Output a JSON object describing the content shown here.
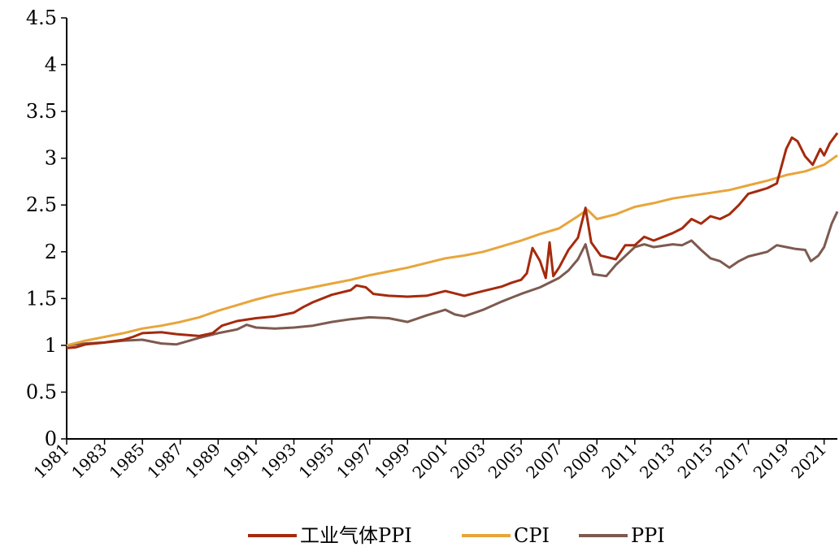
{
  "chart_data": {
    "type": "line",
    "xlim": [
      1981,
      2021.7
    ],
    "ylim": [
      0,
      4.5
    ],
    "y_ticks": [
      {
        "value": 0,
        "label": "0"
      },
      {
        "value": 0.5,
        "label": "0.5"
      },
      {
        "value": 1,
        "label": "1"
      },
      {
        "value": 1.5,
        "label": "1.5"
      },
      {
        "value": 2,
        "label": "2"
      },
      {
        "value": 2.5,
        "label": "2.5"
      },
      {
        "value": 3,
        "label": "3"
      },
      {
        "value": 3.5,
        "label": "3.5"
      },
      {
        "value": 4,
        "label": "4"
      },
      {
        "value": 4.5,
        "label": "4.5"
      }
    ],
    "x_ticks": [
      {
        "value": 1981,
        "label": "1981"
      },
      {
        "value": 1983,
        "label": "1983"
      },
      {
        "value": 1985,
        "label": "1985"
      },
      {
        "value": 1987,
        "label": "1987"
      },
      {
        "value": 1989,
        "label": "1989"
      },
      {
        "value": 1991,
        "label": "1991"
      },
      {
        "value": 1993,
        "label": "1993"
      },
      {
        "value": 1995,
        "label": "1995"
      },
      {
        "value": 1997,
        "label": "1997"
      },
      {
        "value": 1999,
        "label": "1999"
      },
      {
        "value": 2001,
        "label": "2001"
      },
      {
        "value": 2003,
        "label": "2003"
      },
      {
        "value": 2005,
        "label": "2005"
      },
      {
        "value": 2007,
        "label": "2007"
      },
      {
        "value": 2009,
        "label": "2009"
      },
      {
        "value": 2011,
        "label": "2011"
      },
      {
        "value": 2013,
        "label": "2013"
      },
      {
        "value": 2015,
        "label": "2015"
      },
      {
        "value": 2017,
        "label": "2017"
      },
      {
        "value": 2019,
        "label": "2019"
      },
      {
        "value": 2021,
        "label": "2021"
      }
    ],
    "grid": false,
    "legend_position": "bottom-center",
    "series": [
      {
        "name": "工业气体PPI",
        "color": "#A52A0D",
        "points": [
          [
            1981,
            0.97
          ],
          [
            1981.5,
            0.98
          ],
          [
            1982,
            1.01
          ],
          [
            1983,
            1.03
          ],
          [
            1984,
            1.06
          ],
          [
            1984.5,
            1.09
          ],
          [
            1985,
            1.13
          ],
          [
            1986,
            1.14
          ],
          [
            1986.8,
            1.12
          ],
          [
            1988,
            1.1
          ],
          [
            1988.7,
            1.13
          ],
          [
            1989.2,
            1.21
          ],
          [
            1990,
            1.26
          ],
          [
            1991,
            1.29
          ],
          [
            1992,
            1.31
          ],
          [
            1993,
            1.35
          ],
          [
            1993.5,
            1.41
          ],
          [
            1994,
            1.46
          ],
          [
            1995,
            1.54
          ],
          [
            1996,
            1.59
          ],
          [
            1996.3,
            1.64
          ],
          [
            1996.8,
            1.62
          ],
          [
            1997.2,
            1.55
          ],
          [
            1998,
            1.53
          ],
          [
            1999,
            1.52
          ],
          [
            2000,
            1.53
          ],
          [
            2001,
            1.58
          ],
          [
            2002,
            1.53
          ],
          [
            2003,
            1.58
          ],
          [
            2004,
            1.63
          ],
          [
            2004.5,
            1.67
          ],
          [
            2005,
            1.7
          ],
          [
            2005.3,
            1.77
          ],
          [
            2005.6,
            2.04
          ],
          [
            2006,
            1.9
          ],
          [
            2006.3,
            1.72
          ],
          [
            2006.5,
            2.1
          ],
          [
            2006.7,
            1.74
          ],
          [
            2007,
            1.83
          ],
          [
            2007.5,
            2.02
          ],
          [
            2008,
            2.15
          ],
          [
            2008.4,
            2.47
          ],
          [
            2008.7,
            2.1
          ],
          [
            2009.2,
            1.96
          ],
          [
            2010,
            1.92
          ],
          [
            2010.5,
            2.07
          ],
          [
            2011,
            2.07
          ],
          [
            2011.5,
            2.16
          ],
          [
            2012,
            2.12
          ],
          [
            2013,
            2.2
          ],
          [
            2013.5,
            2.25
          ],
          [
            2014,
            2.35
          ],
          [
            2014.5,
            2.3
          ],
          [
            2015,
            2.38
          ],
          [
            2015.5,
            2.35
          ],
          [
            2016,
            2.4
          ],
          [
            2016.5,
            2.5
          ],
          [
            2017,
            2.62
          ],
          [
            2017.5,
            2.65
          ],
          [
            2018,
            2.68
          ],
          [
            2018.5,
            2.73
          ],
          [
            2019,
            3.1
          ],
          [
            2019.3,
            3.22
          ],
          [
            2019.6,
            3.18
          ],
          [
            2020,
            3.02
          ],
          [
            2020.4,
            2.93
          ],
          [
            2020.8,
            3.1
          ],
          [
            2021,
            3.03
          ],
          [
            2021.3,
            3.16
          ],
          [
            2021.7,
            3.27
          ]
        ]
      },
      {
        "name": "CPI",
        "color": "#E8A53B",
        "points": [
          [
            1981,
            1.0
          ],
          [
            1982,
            1.05
          ],
          [
            1983,
            1.09
          ],
          [
            1984,
            1.13
          ],
          [
            1985,
            1.18
          ],
          [
            1986,
            1.21
          ],
          [
            1987,
            1.25
          ],
          [
            1988,
            1.3
          ],
          [
            1989,
            1.37
          ],
          [
            1990,
            1.43
          ],
          [
            1991,
            1.49
          ],
          [
            1992,
            1.54
          ],
          [
            1993,
            1.58
          ],
          [
            1994,
            1.62
          ],
          [
            1995,
            1.66
          ],
          [
            1996,
            1.7
          ],
          [
            1997,
            1.75
          ],
          [
            1998,
            1.79
          ],
          [
            1999,
            1.83
          ],
          [
            2000,
            1.88
          ],
          [
            2001,
            1.93
          ],
          [
            2002,
            1.96
          ],
          [
            2003,
            2.0
          ],
          [
            2004,
            2.06
          ],
          [
            2005,
            2.12
          ],
          [
            2006,
            2.19
          ],
          [
            2007,
            2.25
          ],
          [
            2008,
            2.38
          ],
          [
            2008.5,
            2.45
          ],
          [
            2009,
            2.35
          ],
          [
            2010,
            2.4
          ],
          [
            2011,
            2.48
          ],
          [
            2012,
            2.52
          ],
          [
            2013,
            2.57
          ],
          [
            2014,
            2.6
          ],
          [
            2015,
            2.63
          ],
          [
            2016,
            2.66
          ],
          [
            2017,
            2.71
          ],
          [
            2018,
            2.76
          ],
          [
            2019,
            2.82
          ],
          [
            2020,
            2.86
          ],
          [
            2021,
            2.93
          ],
          [
            2021.7,
            3.03
          ]
        ]
      },
      {
        "name": "PPI",
        "color": "#7D5A50",
        "points": [
          [
            1981,
            1.0
          ],
          [
            1982,
            1.02
          ],
          [
            1983,
            1.03
          ],
          [
            1984,
            1.05
          ],
          [
            1985,
            1.06
          ],
          [
            1986,
            1.02
          ],
          [
            1986.8,
            1.01
          ],
          [
            1987.5,
            1.05
          ],
          [
            1988,
            1.08
          ],
          [
            1989,
            1.13
          ],
          [
            1990,
            1.17
          ],
          [
            1990.5,
            1.22
          ],
          [
            1991,
            1.19
          ],
          [
            1992,
            1.18
          ],
          [
            1993,
            1.19
          ],
          [
            1994,
            1.21
          ],
          [
            1995,
            1.25
          ],
          [
            1996,
            1.28
          ],
          [
            1997,
            1.3
          ],
          [
            1998,
            1.29
          ],
          [
            1999,
            1.25
          ],
          [
            2000,
            1.32
          ],
          [
            2001,
            1.38
          ],
          [
            2001.5,
            1.33
          ],
          [
            2002,
            1.31
          ],
          [
            2003,
            1.38
          ],
          [
            2004,
            1.47
          ],
          [
            2005,
            1.55
          ],
          [
            2006,
            1.62
          ],
          [
            2007,
            1.72
          ],
          [
            2007.5,
            1.8
          ],
          [
            2008,
            1.92
          ],
          [
            2008.4,
            2.08
          ],
          [
            2008.8,
            1.76
          ],
          [
            2009.5,
            1.74
          ],
          [
            2010,
            1.86
          ],
          [
            2011,
            2.05
          ],
          [
            2011.5,
            2.08
          ],
          [
            2012,
            2.05
          ],
          [
            2013,
            2.08
          ],
          [
            2013.5,
            2.07
          ],
          [
            2014,
            2.12
          ],
          [
            2014.5,
            2.02
          ],
          [
            2015,
            1.93
          ],
          [
            2015.5,
            1.9
          ],
          [
            2016,
            1.83
          ],
          [
            2016.5,
            1.9
          ],
          [
            2017,
            1.95
          ],
          [
            2018,
            2.0
          ],
          [
            2018.5,
            2.07
          ],
          [
            2019,
            2.05
          ],
          [
            2019.5,
            2.03
          ],
          [
            2020,
            2.02
          ],
          [
            2020.3,
            1.9
          ],
          [
            2020.7,
            1.96
          ],
          [
            2021,
            2.05
          ],
          [
            2021.4,
            2.3
          ],
          [
            2021.7,
            2.43
          ]
        ]
      }
    ]
  }
}
